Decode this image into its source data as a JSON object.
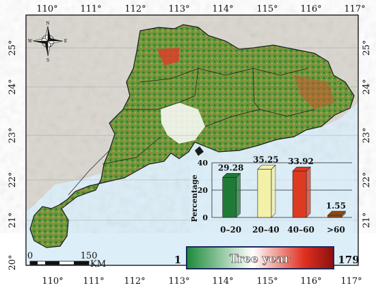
{
  "map": {
    "lon_ticks": [
      "110°",
      "111°",
      "112°",
      "113°",
      "114°",
      "115°",
      "116°",
      "117°"
    ],
    "lat_ticks": [
      "25°",
      "24°",
      "23°",
      "22°",
      "21°",
      "20°"
    ],
    "north_arrow": {
      "n": "N",
      "s": "S",
      "e": "E",
      "w": "W"
    },
    "scale_bar": {
      "start": "0",
      "end": "150",
      "unit": "KM"
    },
    "legend": {
      "min": "1",
      "title": "Tree year",
      "max": "179",
      "colors": [
        "#1a8a3a",
        "#ffffff",
        "#e03020",
        "#8a1010"
      ]
    },
    "colors": {
      "ocean": "#dceef8",
      "land_relief": "#d9d4cc",
      "province_forest": "#5d8f3a",
      "boundary": "#1a1a1a"
    }
  },
  "chart_data": {
    "type": "bar",
    "categories": [
      "0–20",
      "20–40",
      "40–60",
      ">60"
    ],
    "values": [
      29.28,
      35.25,
      33.92,
      1.55
    ],
    "value_labels": [
      "29.28",
      "35.25",
      "33.92",
      "1.55"
    ],
    "ylabel": "Percentage",
    "yticks": [
      "0",
      "20",
      "40"
    ],
    "ylim": [
      0,
      40
    ],
    "bar_colors": [
      "#1f7a35",
      "#f3f0a8",
      "#dd3a22",
      "#8b4a14"
    ]
  }
}
